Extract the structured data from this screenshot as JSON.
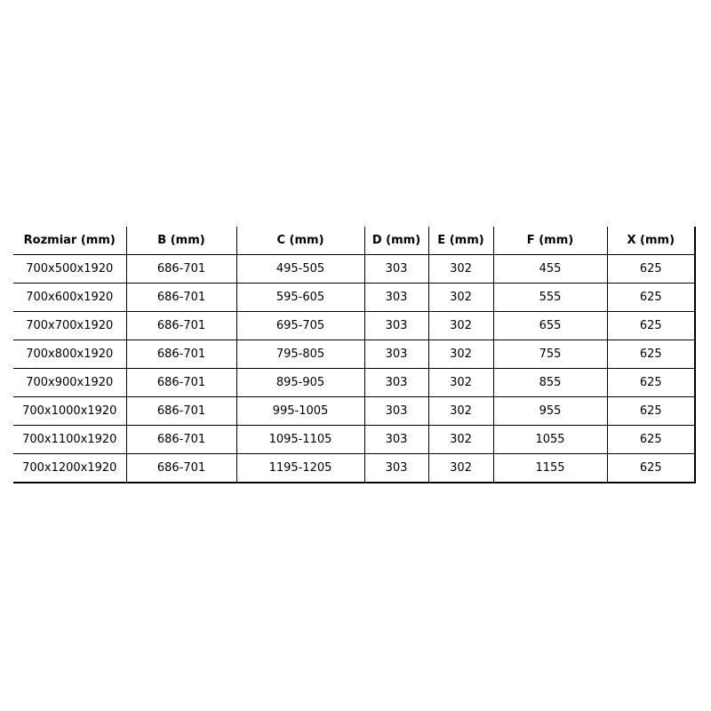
{
  "table": {
    "headers": [
      "Rozmiar (mm)",
      "B (mm)",
      "C (mm)",
      "D (mm)",
      "E (mm)",
      "F (mm)",
      "X (mm)"
    ],
    "rows": [
      [
        "700x500x1920",
        "686-701",
        "495-505",
        "303",
        "302",
        "455",
        "625"
      ],
      [
        "700x600x1920",
        "686-701",
        "595-605",
        "303",
        "302",
        "555",
        "625"
      ],
      [
        "700x700x1920",
        "686-701",
        "695-705",
        "303",
        "302",
        "655",
        "625"
      ],
      [
        "700x800x1920",
        "686-701",
        "795-805",
        "303",
        "302",
        "755",
        "625"
      ],
      [
        "700x900x1920",
        "686-701",
        "895-905",
        "303",
        "302",
        "855",
        "625"
      ],
      [
        "700x1000x1920",
        "686-701",
        "995-1005",
        "303",
        "302",
        "955",
        "625"
      ],
      [
        "700x1100x1920",
        "686-701",
        "1095-1105",
        "303",
        "302",
        "1055",
        "625"
      ],
      [
        "700x1200x1920",
        "686-701",
        "1195-1205",
        "303",
        "302",
        "1155",
        "625"
      ]
    ]
  }
}
